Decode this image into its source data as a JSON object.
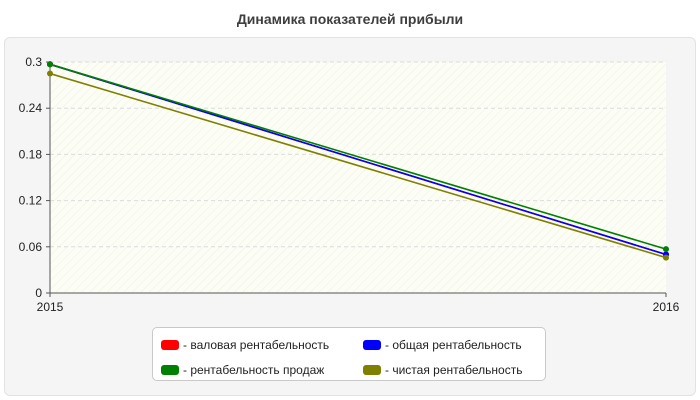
{
  "chart_data": {
    "type": "line",
    "title": "Динамика показателей прибыли",
    "categories": [
      "2015",
      "2016"
    ],
    "series": [
      {
        "name": "- валовая рентабельность",
        "color": "#ff0000",
        "values": [
          0.297,
          0.05
        ]
      },
      {
        "name": "- общая рентабельность",
        "color": "#0000ff",
        "values": [
          0.297,
          0.05
        ]
      },
      {
        "name": "- рентабельность продаж",
        "color": "#008000",
        "values": [
          0.297,
          0.057
        ]
      },
      {
        "name": "- чистая рентабельность",
        "color": "#808000",
        "values": [
          0.285,
          0.046
        ]
      }
    ],
    "yticks": [
      "0",
      "0.06",
      "0.12",
      "0.18",
      "0.24",
      "0.3"
    ],
    "ylim": [
      0,
      0.3
    ],
    "grid": true,
    "legend": "bottom"
  }
}
